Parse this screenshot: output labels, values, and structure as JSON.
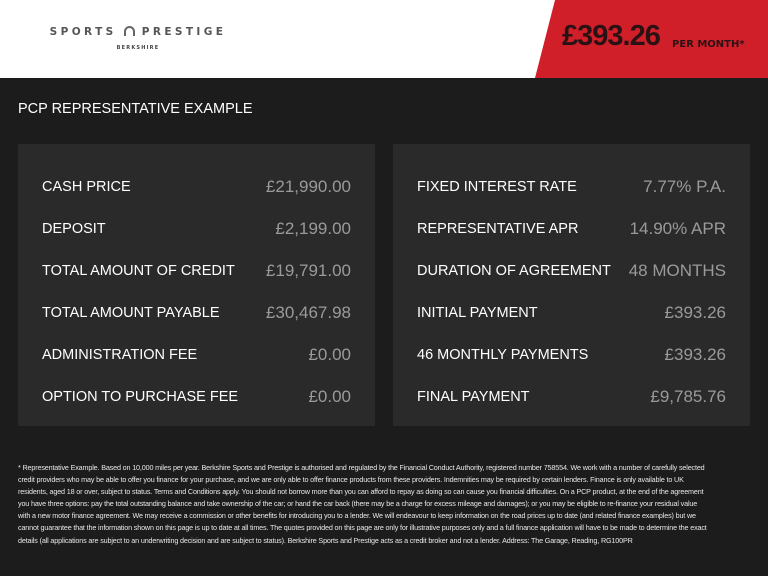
{
  "header": {
    "logo_main": "SPORTS",
    "logo_main2": "PRESTIGE",
    "logo_sub": "BERKSHIRE",
    "price": "£393.26",
    "per_month": "PER MONTH*",
    "accent": "#d11f2a"
  },
  "title": "PCP REPRESENTATIVE EXAMPLE",
  "left": [
    {
      "label": "CASH PRICE",
      "value": "£21,990.00"
    },
    {
      "label": "DEPOSIT",
      "value": "£2,199.00"
    },
    {
      "label": "TOTAL AMOUNT OF CREDIT",
      "value": "£19,791.00"
    },
    {
      "label": "TOTAL AMOUNT PAYABLE",
      "value": "£30,467.98"
    },
    {
      "label": "ADMINISTRATION FEE",
      "value": "£0.00"
    },
    {
      "label": "OPTION TO PURCHASE FEE",
      "value": "£0.00"
    }
  ],
  "right": [
    {
      "label": "FIXED INTEREST RATE",
      "value": "7.77% P.A."
    },
    {
      "label": "REPRESENTATIVE APR",
      "value": "14.90% APR"
    },
    {
      "label": "DURATION OF AGREEMENT",
      "value": "48 MONTHS"
    },
    {
      "label": "INITIAL PAYMENT",
      "value": "£393.26"
    },
    {
      "label": "46 MONTHLY PAYMENTS",
      "value": "£393.26"
    },
    {
      "label": "FINAL PAYMENT",
      "value": "£9,785.76"
    }
  ],
  "footnote": "* Representative Example. Based on 10,000 miles per year. Berkshire Sports and Prestige is authorised and regulated by the Financial Conduct Authority, registered number 758554. We work with a number of carefully selected credit providers who may be able to offer you finance for your purchase, and we are only able to offer finance products from these providers. Indemnities may be required by certain lenders. Finance is only available to UK residents, aged 18 or over, subject to status. Terms and Conditions apply. You should not borrow more than you can afford to repay as doing so can cause you financial difficulties. On a PCP product, at the end of the agreement you have three options: pay the total outstanding balance and take ownership of the car; or hand the car back (there may be a charge for excess mileage and damages); or you may be eligible to re-finance your residual value with a new motor finance agreement. We may receive a commission or other benefits for introducing you to a lender. We will endeavour to keep information on the road prices up to date (and related finance examples) but we cannot guarantee that the information shown on this page is up to date at all times. The quotes provided on this page are only for illustrative purposes only and a full finance application will have to be made to determine the exact details (all applications are subject to an underwriting decision and are subject to status). Berkshire Sports and Prestige acts as a credit broker and not a lender. Address: The Garage, Reading, RG100PR"
}
